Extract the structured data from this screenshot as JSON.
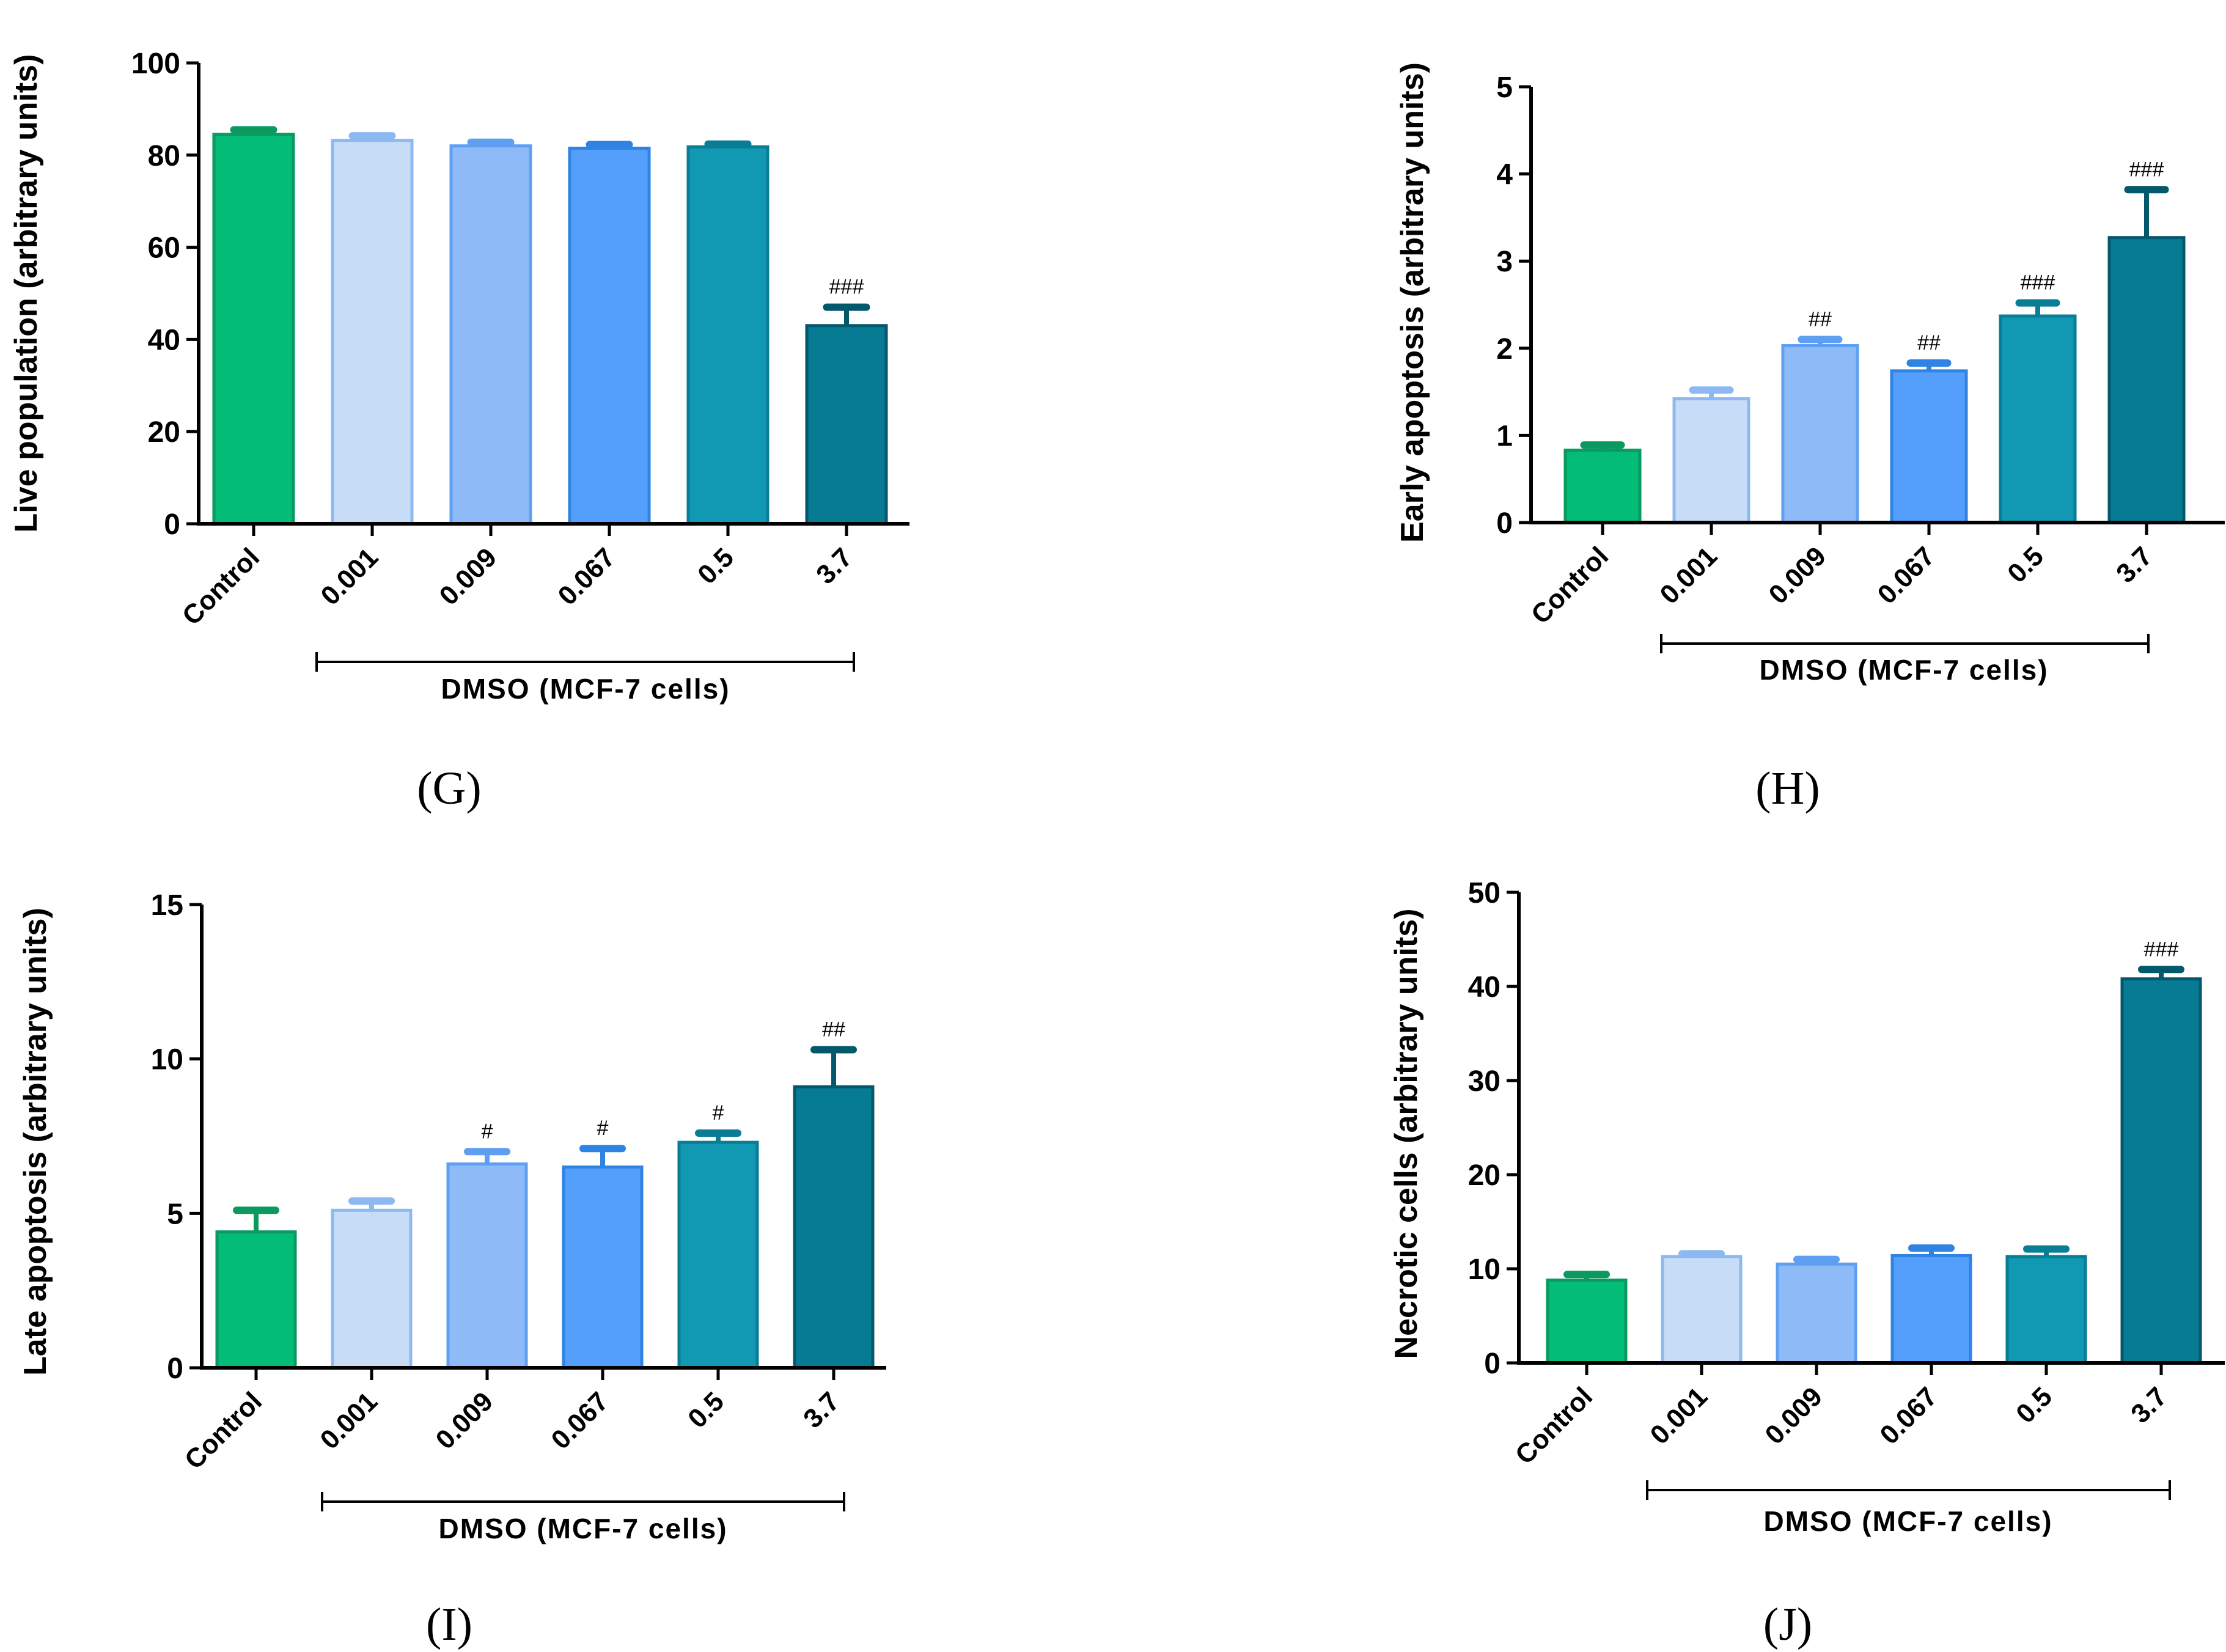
{
  "figure": {
    "group_label": "DMSO (MCF-7 cells)",
    "colors": [
      "#03bc77",
      "#c7dcf7",
      "#8ebbf8",
      "#559ffc",
      "#1198b2",
      "#077b93"
    ],
    "edge_colors": [
      "#0a9a5f",
      "#8cb9f2",
      "#5f9ff2",
      "#2e83e3",
      "#0a7d96",
      "#04586c"
    ]
  },
  "chart_data": [
    {
      "panel": "(G)",
      "type": "bar",
      "categories": [
        "Control",
        "0.001",
        "0.009",
        "0.067",
        "0.5",
        "3.7"
      ],
      "values": [
        84.5,
        83.2,
        82.0,
        81.5,
        81.8,
        43.0
      ],
      "errors": [
        1.0,
        1.0,
        0.8,
        0.8,
        0.6,
        4.0
      ],
      "annotations": [
        "",
        "",
        "",
        "",
        "",
        "###"
      ],
      "ylabel": "Live population (arbitrary units)",
      "xlabel": "DMSO (MCF-7 cells)",
      "ylim": [
        0,
        100
      ],
      "yticks": [
        0,
        20,
        40,
        60,
        80,
        100
      ],
      "ytick_labels": [
        "0",
        "20",
        "40",
        "60",
        "80",
        "100"
      ]
    },
    {
      "panel": "(H)",
      "type": "bar",
      "categories": [
        "Control",
        "0.001",
        "0.009",
        "0.067",
        "0.5",
        "3.7"
      ],
      "values": [
        0.83,
        1.42,
        2.03,
        1.74,
        2.37,
        3.27
      ],
      "errors": [
        0.06,
        0.1,
        0.07,
        0.09,
        0.15,
        0.55
      ],
      "annotations": [
        "",
        "",
        "##",
        "##",
        "###",
        "###"
      ],
      "ylabel": "Early apoptosis (arbitrary units)",
      "xlabel": "DMSO (MCF-7 cells)",
      "ylim": [
        0,
        5
      ],
      "yticks": [
        0,
        1,
        2,
        3,
        4,
        5
      ],
      "ytick_labels": [
        "0",
        "1",
        "2",
        "3",
        "4",
        "5"
      ]
    },
    {
      "panel": "(I)",
      "type": "bar",
      "categories": [
        "Control",
        "0.001",
        "0.009",
        "0.067",
        "0.5",
        "3.7"
      ],
      "values": [
        4.4,
        5.1,
        6.6,
        6.5,
        7.3,
        9.1
      ],
      "errors": [
        0.7,
        0.3,
        0.4,
        0.6,
        0.3,
        1.2
      ],
      "annotations": [
        "",
        "",
        "#",
        "#",
        "#",
        "##"
      ],
      "ylabel": "Late apoptosis (arbitrary units)",
      "xlabel": "DMSO (MCF-7 cells)",
      "ylim": [
        0,
        15
      ],
      "yticks": [
        0,
        5,
        10,
        15
      ],
      "ytick_labels": [
        "0",
        "5",
        "10",
        "15"
      ]
    },
    {
      "panel": "(J)",
      "type": "bar",
      "categories": [
        "Control",
        "0.001",
        "0.009",
        "0.067",
        "0.5",
        "3.7"
      ],
      "values": [
        8.8,
        11.3,
        10.5,
        11.4,
        11.3,
        40.8
      ],
      "errors": [
        0.6,
        0.3,
        0.5,
        0.8,
        0.8,
        1.0
      ],
      "annotations": [
        "",
        "",
        "",
        "",
        "",
        "###"
      ],
      "ylabel": "Necrotic cells (arbitrary units)",
      "xlabel": "DMSO (MCF-7 cells)",
      "ylim": [
        0,
        50
      ],
      "yticks": [
        0,
        10,
        20,
        30,
        40,
        50
      ],
      "ytick_labels": [
        "0",
        "10",
        "20",
        "30",
        "40",
        "50"
      ]
    }
  ]
}
